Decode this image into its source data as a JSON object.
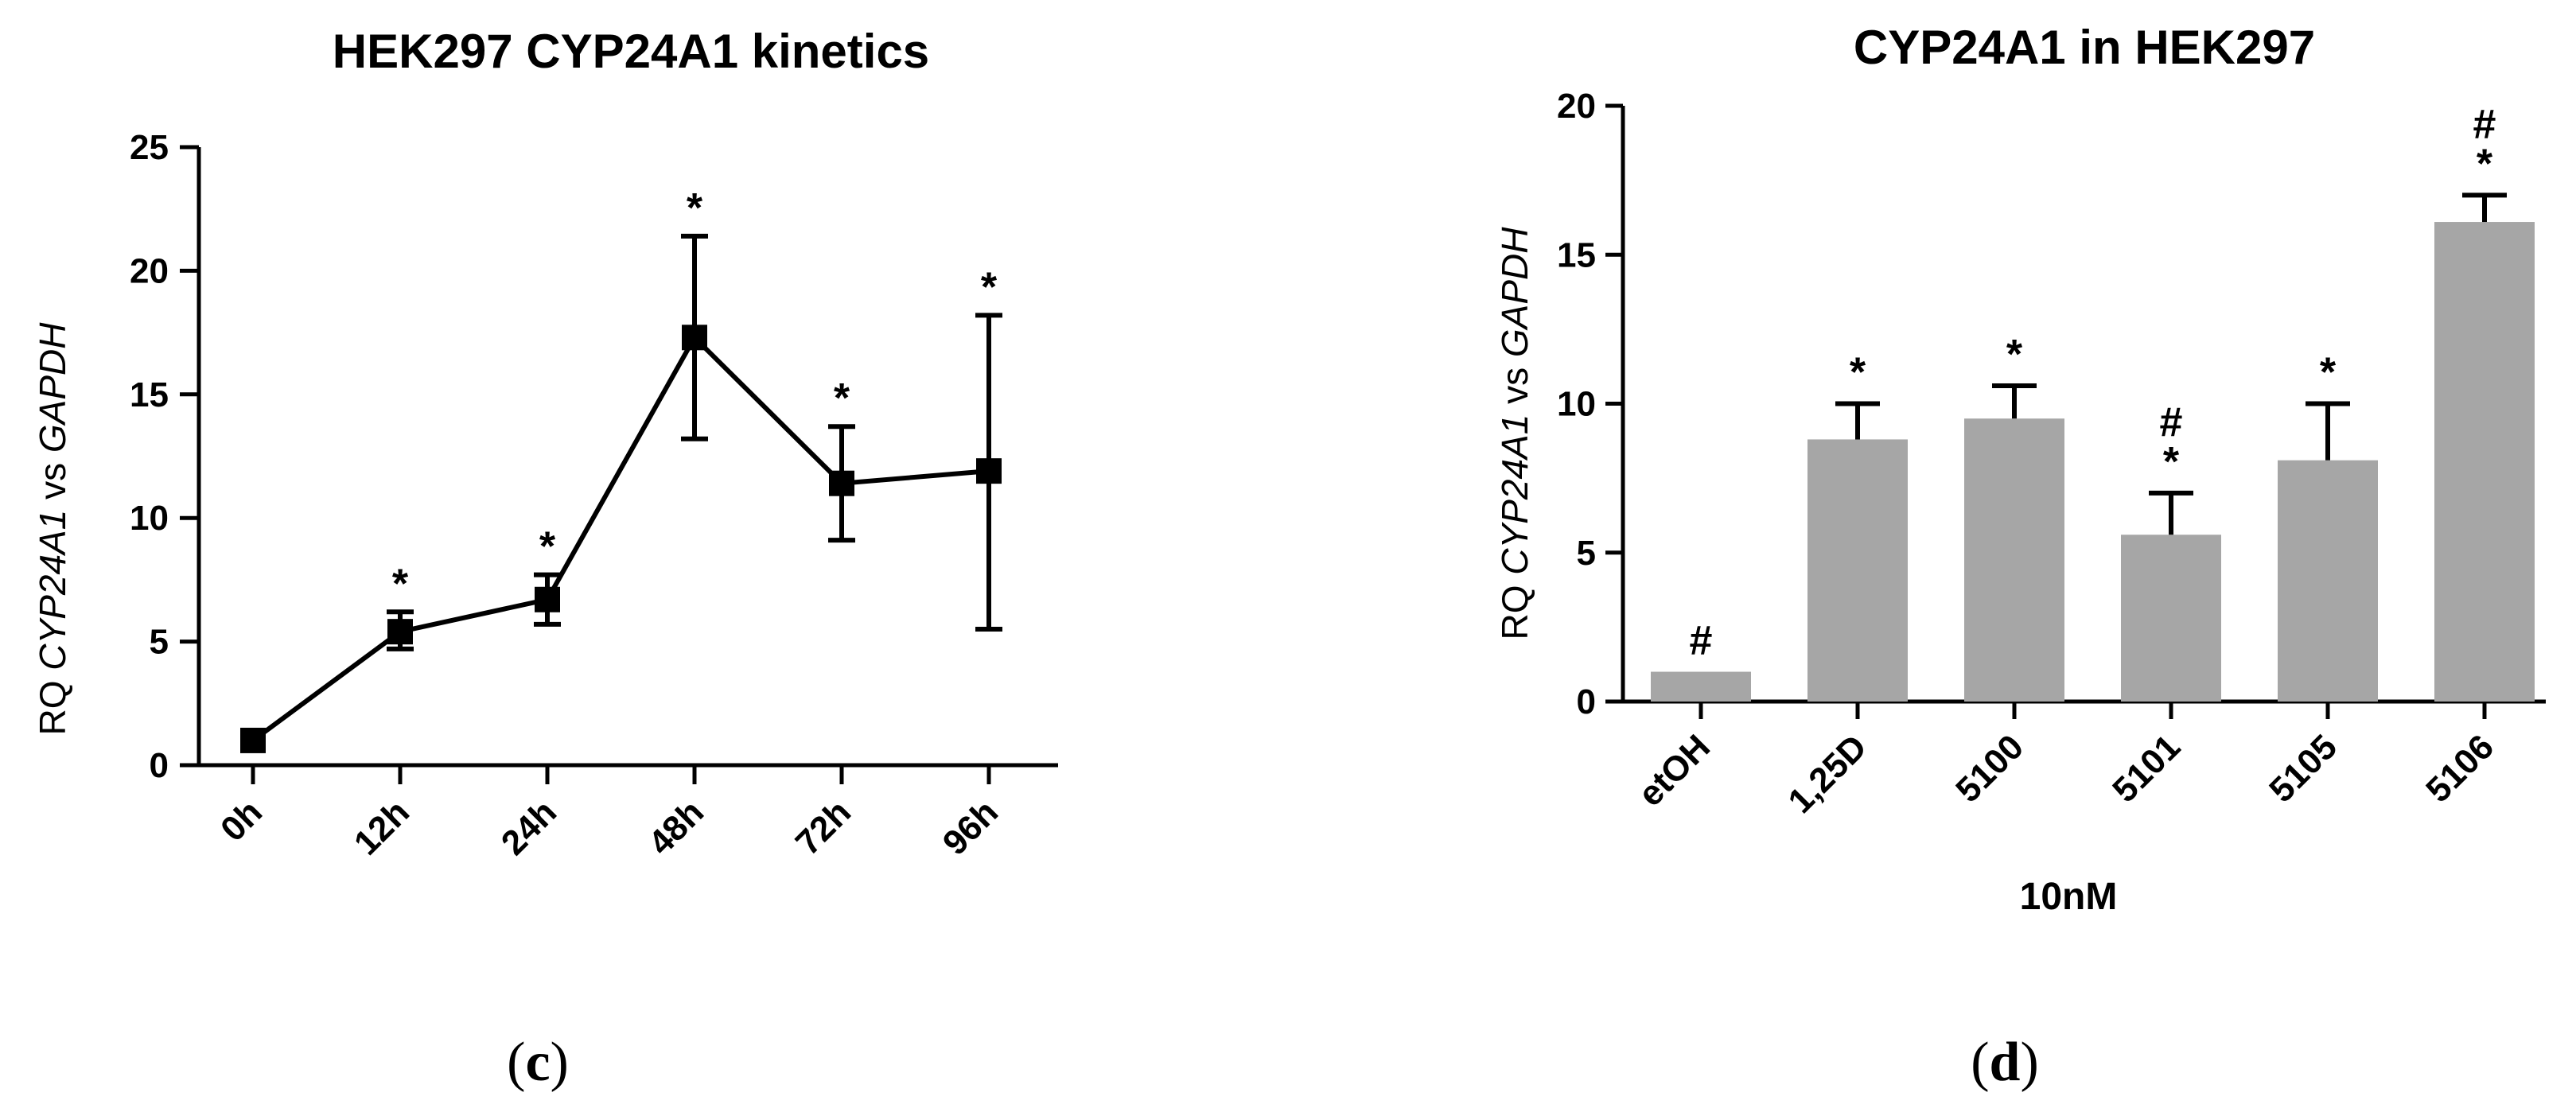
{
  "chart_data": [
    {
      "panel": "c",
      "type": "line",
      "title": "HEK297 CYP24A1 kinetics",
      "ylabel_parts": [
        "RQ ",
        "CYP24A1",
        " vs ",
        "GAPDH"
      ],
      "xlabel": "",
      "categories": [
        "0h",
        "12h",
        "24h",
        "48h",
        "72h",
        "96h"
      ],
      "values": [
        1.0,
        5.4,
        6.7,
        17.3,
        11.4,
        11.9
      ],
      "err_upper": [
        1.0,
        6.2,
        7.7,
        21.4,
        13.7,
        18.2
      ],
      "err_lower": [
        1.0,
        4.7,
        5.7,
        13.2,
        9.1,
        5.5
      ],
      "annotations": [
        "",
        "*",
        "*",
        "*",
        "*",
        "*"
      ],
      "ylim": [
        0,
        25
      ],
      "yticks": [
        "0",
        "5",
        "10",
        "15",
        "20",
        "25"
      ],
      "ytick_values": [
        0,
        5,
        10,
        15,
        20,
        25
      ],
      "series_color": "#000000"
    },
    {
      "panel": "d",
      "type": "bar",
      "title": "CYP24A1 in HEK297",
      "ylabel_parts": [
        "RQ ",
        "CYP24A1",
        " vs ",
        "GAPDH"
      ],
      "xlabel": "10nM",
      "categories": [
        "etOH",
        "1,25D",
        "5100",
        "5101",
        "5105",
        "5106"
      ],
      "values": [
        1.0,
        8.8,
        9.5,
        5.6,
        8.1,
        16.1
      ],
      "err_upper": [
        1.0,
        10.0,
        10.6,
        7.0,
        10.0,
        17.0
      ],
      "annotations": [
        [
          "#"
        ],
        [
          "*"
        ],
        [
          "*"
        ],
        [
          "*",
          "#"
        ],
        [
          "*"
        ],
        [
          "*",
          "#"
        ]
      ],
      "ylim": [
        0,
        20
      ],
      "yticks": [
        "0",
        "5",
        "10",
        "15",
        "20"
      ],
      "ytick_values": [
        0,
        5,
        10,
        15,
        20
      ],
      "bar_color": "#a6a6a6"
    }
  ],
  "panel_labels": {
    "c": {
      "open": "(",
      "letter": "c",
      "close": ")"
    },
    "d": {
      "open": "(",
      "letter": "d",
      "close": ")"
    }
  }
}
